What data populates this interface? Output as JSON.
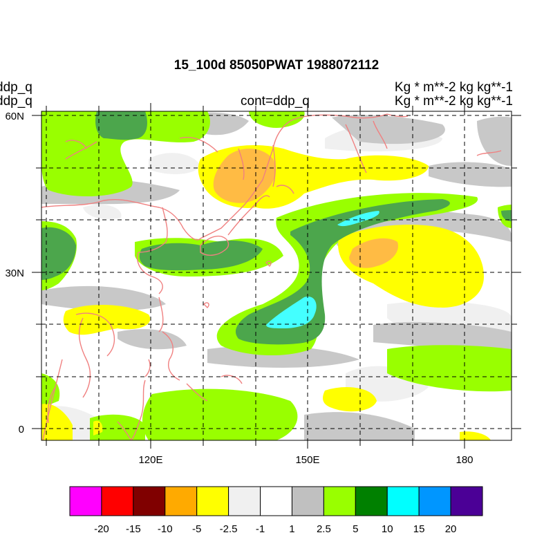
{
  "title": "15_100d 85050PWAT  1988072112",
  "left_labels": [
    "ddp_q",
    "ddp_q"
  ],
  "center_label": "cont=ddp_q",
  "right_labels": [
    "Kg  * m**-2 kg kg**-1",
    "Kg  * m**-2 kg kg**-1"
  ],
  "map": {
    "lat_labels": [
      "60N",
      "30N",
      "0"
    ],
    "lon_labels": [
      "120E",
      "150E",
      "180"
    ],
    "coastline_color": "#f08080"
  },
  "colorbar": {
    "colors": [
      "#ff00ff",
      "#ff0000",
      "#800000",
      "#ffaa00",
      "#ffff00",
      "#f0f0f0",
      "#ffffff",
      "#c0c0c0",
      "#99ff00",
      "#008000",
      "#00ffff",
      "#0096ff",
      "#4b0096"
    ],
    "labels": [
      "-20",
      "-15",
      "-10",
      "-5",
      "-2.5",
      "-1",
      "1",
      "2.5",
      "5",
      "10",
      "15",
      "20"
    ]
  }
}
